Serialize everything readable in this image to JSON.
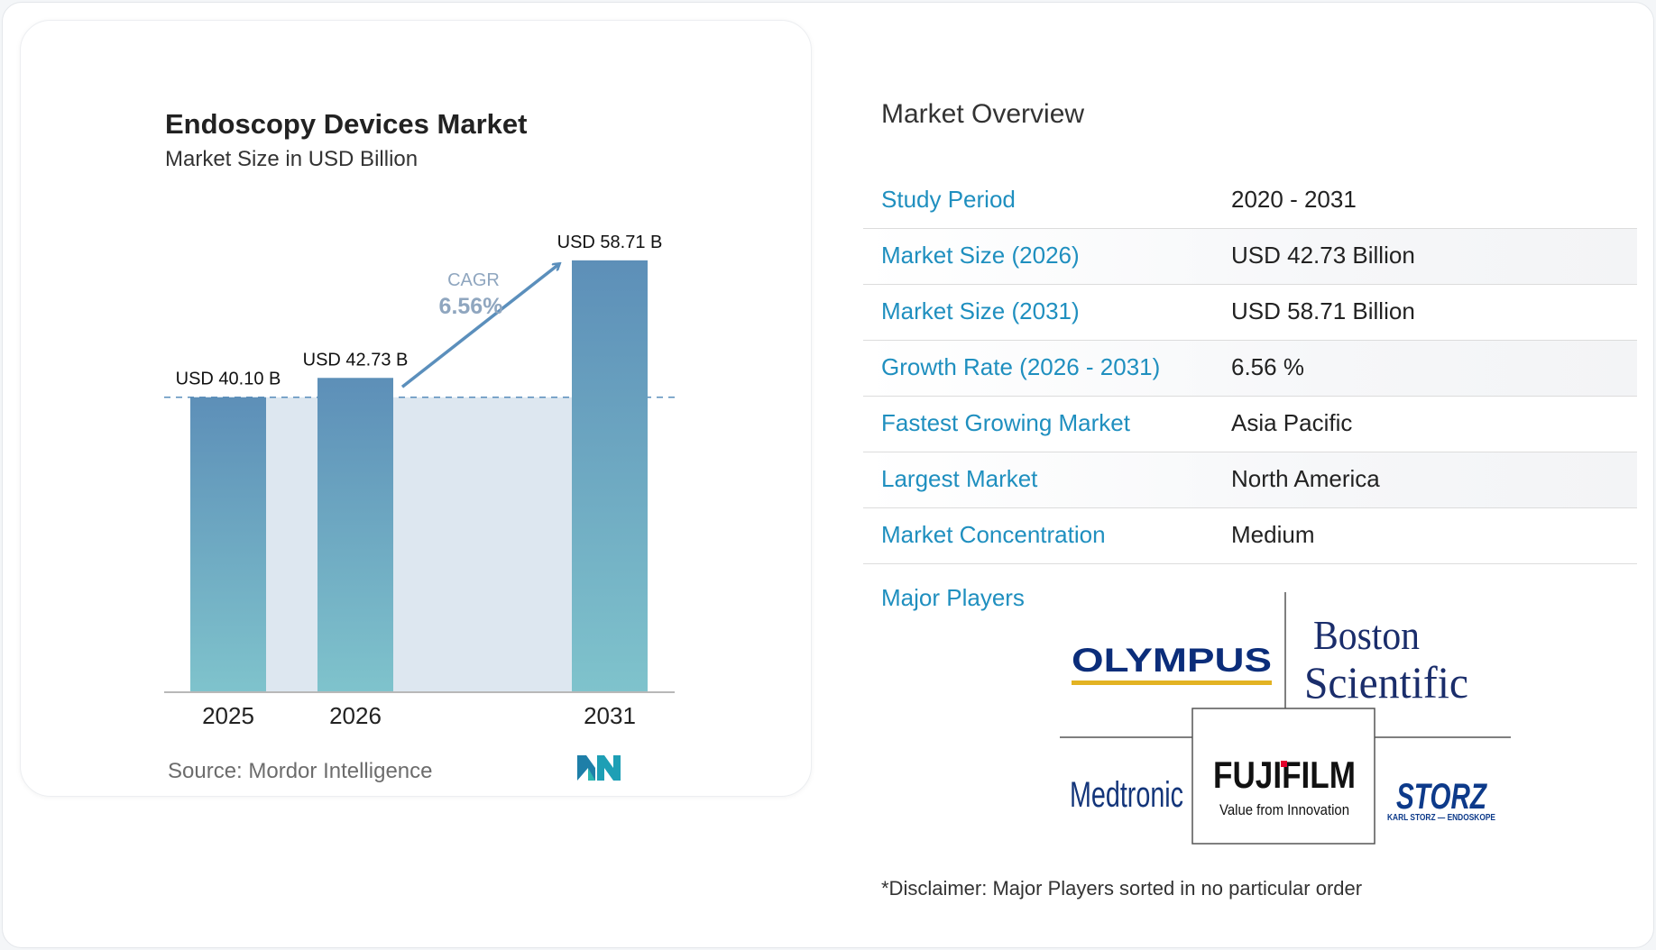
{
  "chart_data": {
    "type": "bar",
    "title": "Endoscopy Devices Market",
    "subtitle": "Market Size in USD Billion",
    "categories": [
      "2025",
      "2026",
      "2031"
    ],
    "values": [
      40.1,
      42.73,
      58.71
    ],
    "data_labels": [
      "USD 40.10 B",
      "USD 42.73 B",
      "USD 58.71 B"
    ],
    "cagr_label": "CAGR",
    "cagr_value": "6.56%",
    "ylim": [
      0,
      62
    ],
    "colors": {
      "bar_top": "#5d8fb8",
      "bar_bottom": "#7fc3cc",
      "band": "#dde7f0",
      "arrow": "#5b8fbc",
      "cagr_text": "#8fa6bf"
    }
  },
  "source": "Source: Mordor Intelligence",
  "overview": {
    "title": "Market Overview",
    "rows": [
      {
        "label": "Study Period",
        "value": "2020 - 2031"
      },
      {
        "label": "Market Size (2026)",
        "value": "USD 42.73 Billion"
      },
      {
        "label": "Market Size (2031)",
        "value": "USD 58.71 Billion"
      },
      {
        "label": "Growth Rate (2026 - 2031)",
        "value": "6.56 %"
      },
      {
        "label": "Fastest Growing Market",
        "value": "Asia Pacific"
      },
      {
        "label": "Largest Market",
        "value": "North America"
      },
      {
        "label": "Market Concentration",
        "value": "Medium"
      }
    ]
  },
  "players": {
    "label": "Major Players",
    "logos": [
      {
        "name": "OLYMPUS"
      },
      {
        "name": "Boston",
        "line2": "Scientific"
      },
      {
        "name": "Medtronic"
      },
      {
        "name": "FUJIFILM",
        "tagline": "Value from Innovation"
      },
      {
        "name": "STORZ",
        "tagline": "KARL STORZ — ENDOSKOPE"
      }
    ]
  },
  "disclaimer": "*Disclaimer: Major Players sorted in no particular order",
  "colors": {
    "accent": "#1f8fbf"
  }
}
